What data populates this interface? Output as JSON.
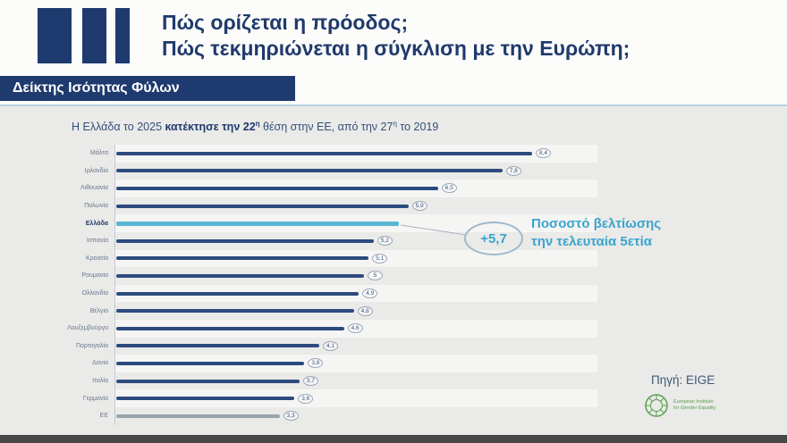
{
  "header": {
    "title_line1": "Πώς ορίζεται η πρόοδος;",
    "title_line2": "Πώς τεκμηριώνεται η σύγκλιση με την Ευρώπη;",
    "banner": "Δείκτης Ισότητας Φύλων"
  },
  "subtitle": {
    "pre": "Η Ελλάδα το 2025 ",
    "bold": "κατέκτησε την 22",
    "bold_sup": "η",
    "mid": " θέση στην ΕΕ, από την 27",
    "sup": "η",
    "post": " το 2019"
  },
  "annotation": {
    "line1": "Ποσοστό βελτίωσης",
    "line2": "την τελευταία 5ετία"
  },
  "callout": {
    "value": "+5,7"
  },
  "source": {
    "label": "Πηγή: EIGE"
  },
  "logo": {
    "name": "EIGE",
    "text_line1": "European Institute",
    "text_line2": "for Gender Equality"
  },
  "colors": {
    "navy": "#1F3A6B",
    "bar": "#2C4B7E",
    "highlight_bar": "#58B6D2",
    "eu_bar": "#98A3AC",
    "teal_text": "#3BA4CD",
    "banner_bg": "#1E3A6E",
    "logo_green": "#5AA04E"
  },
  "chart_data": {
    "type": "bar",
    "orientation": "horizontal",
    "title": "Δείκτης Ισότητας Φύλων",
    "subtitle": "Η Ελλάδα το 2025 κατέκτησε την 22η θέση στην ΕΕ, από την 27η το 2019",
    "categories": [
      "Μάλτα",
      "Ιρλανδία",
      "Λιθουανία",
      "Πολωνία",
      "Ελλάδα",
      "Ισπανία",
      "Κροατία",
      "Ρουμανία",
      "Ολλανδία",
      "Βέλγιο",
      "Λουξεμβούργο",
      "Πορτογαλία",
      "Δανία",
      "Ιταλία",
      "Γερμανία",
      "ΕΕ"
    ],
    "values": [
      8.4,
      7.8,
      6.5,
      5.9,
      5.7,
      5.2,
      5.1,
      5,
      4.9,
      4.8,
      4.6,
      4.1,
      3.8,
      3.7,
      3.6,
      3.3
    ],
    "value_labels": [
      "8,4",
      "7,8",
      "6,5",
      "5,9",
      "+5,7",
      "5,2",
      "5,1",
      "5",
      "4,9",
      "4,8",
      "4,6",
      "4,1",
      "3,8",
      "3,7",
      "3,6",
      "3,3"
    ],
    "highlight_index": 4,
    "eu_index": 15,
    "annotation": "Ποσοστό βελτίωσης την τελευταία 5ετία",
    "xlim": [
      0,
      8.8
    ],
    "grid": false,
    "legend": false
  }
}
